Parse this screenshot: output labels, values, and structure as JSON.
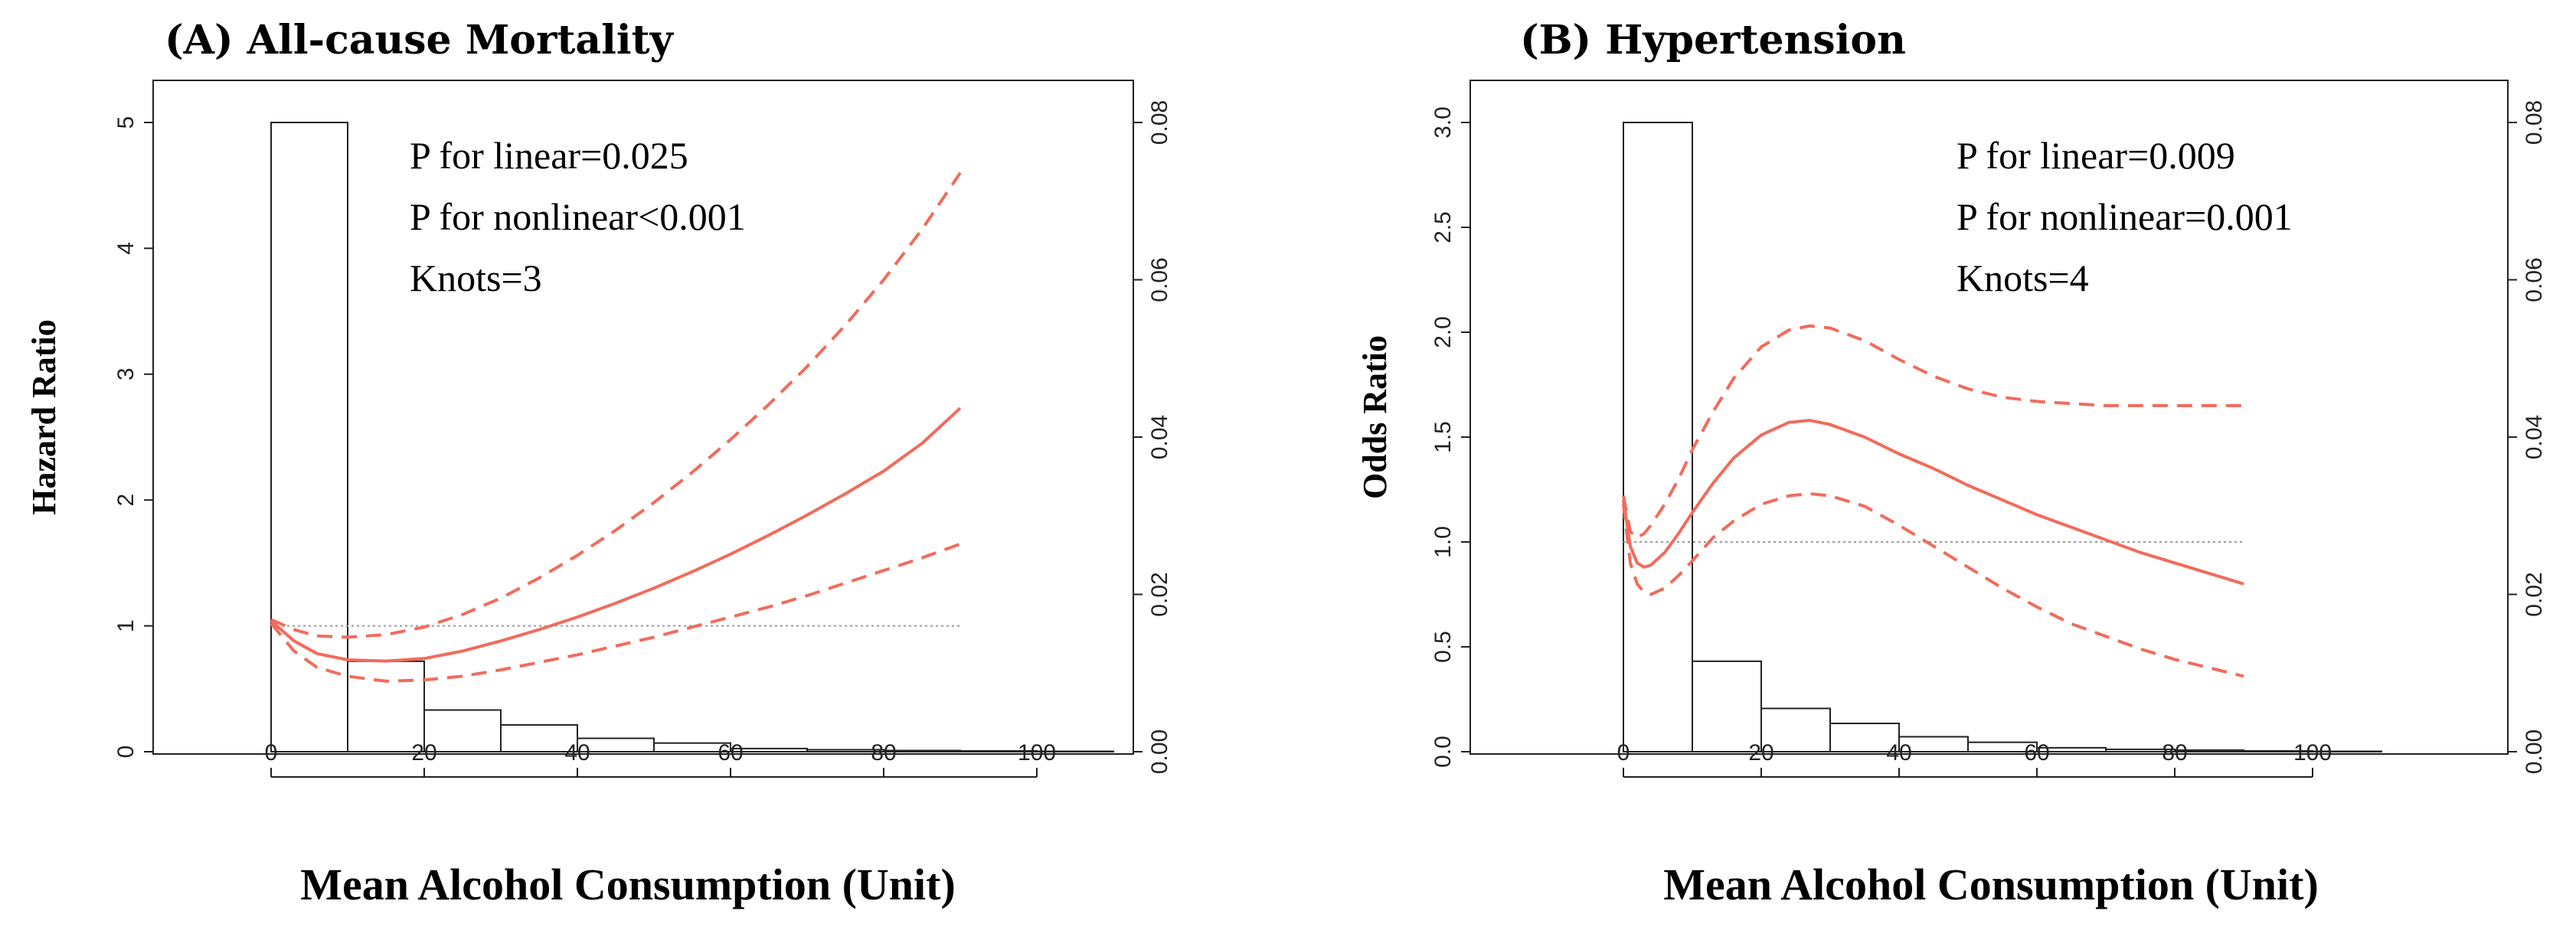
{
  "colors": {
    "curve": "#F26B5B",
    "reference": "#999999",
    "axis": "#222222"
  },
  "chart_data": [
    {
      "type": "line",
      "title": "(A) All-cause Mortality",
      "xlabel": "Mean Alcohol Consumption  (Unit)",
      "ylabel": "Hazard  Ratio",
      "y2label": "",
      "xlim": [
        0,
        110
      ],
      "xticks": [
        0,
        20,
        40,
        60,
        80,
        100
      ],
      "ylim": [
        0,
        5
      ],
      "yticks": [
        0,
        1,
        2,
        3,
        4,
        5
      ],
      "ytick_labels": [
        "0",
        "1",
        "2",
        "3",
        "4",
        "5"
      ],
      "y2lim": [
        0,
        0.08
      ],
      "y2ticks": [
        0,
        0.02,
        0.04,
        0.06,
        0.08
      ],
      "y2tick_labels": [
        "0.00",
        "0.02",
        "0.04",
        "0.06",
        "0.08"
      ],
      "reference_y": 1,
      "reference_x_range": [
        0,
        90
      ],
      "annotations": [
        "P for linear=0.025",
        "P for nonlinear<0.001",
        "Knots=3"
      ],
      "histogram": {
        "bin_edges": [
          0,
          10,
          20,
          30,
          40,
          50,
          60,
          70,
          80,
          90,
          100,
          110
        ],
        "densities": [
          0.08,
          0.0115,
          0.0053,
          0.0034,
          0.0017,
          0.0011,
          0.0004,
          0.00025,
          0.00015,
          0.0001,
          5e-05
        ]
      },
      "series": [
        {
          "name": "Estimate",
          "style": "solid",
          "x": [
            0,
            3,
            6,
            10,
            15,
            20,
            25,
            30,
            35,
            40,
            45,
            50,
            55,
            60,
            65,
            70,
            75,
            80,
            85,
            90
          ],
          "y": [
            1.04,
            0.88,
            0.78,
            0.73,
            0.72,
            0.74,
            0.8,
            0.88,
            0.97,
            1.07,
            1.18,
            1.3,
            1.43,
            1.57,
            1.72,
            1.88,
            2.05,
            2.23,
            2.45,
            2.73
          ]
        },
        {
          "name": "Upper 95% CI",
          "style": "dashed",
          "x": [
            0,
            3,
            6,
            10,
            15,
            20,
            25,
            30,
            35,
            40,
            45,
            50,
            55,
            60,
            65,
            70,
            75,
            80,
            85,
            90
          ],
          "y": [
            1.05,
            0.97,
            0.92,
            0.91,
            0.93,
            0.99,
            1.09,
            1.22,
            1.38,
            1.56,
            1.76,
            1.98,
            2.22,
            2.48,
            2.76,
            3.06,
            3.39,
            3.75,
            4.15,
            4.6
          ]
        },
        {
          "name": "Lower 95% CI",
          "style": "dashed",
          "x": [
            0,
            3,
            6,
            10,
            15,
            20,
            25,
            30,
            35,
            40,
            45,
            50,
            55,
            60,
            65,
            70,
            75,
            80,
            85,
            90
          ],
          "y": [
            1.02,
            0.8,
            0.67,
            0.6,
            0.56,
            0.57,
            0.6,
            0.65,
            0.71,
            0.77,
            0.84,
            0.91,
            0.99,
            1.07,
            1.15,
            1.24,
            1.34,
            1.44,
            1.54,
            1.65
          ]
        }
      ]
    },
    {
      "type": "line",
      "title": "(B) Hypertension",
      "xlabel": "Mean Alcohol Consumption  (Unit)",
      "ylabel": "Odds  Ratio",
      "y2label": "",
      "xlim": [
        0,
        110
      ],
      "xticks": [
        0,
        20,
        40,
        60,
        80,
        100
      ],
      "ylim": [
        0,
        3
      ],
      "yticks": [
        0,
        0.5,
        1,
        1.5,
        2,
        2.5,
        3
      ],
      "ytick_labels": [
        "0.0",
        "0.5",
        "1.0",
        "1.5",
        "2.0",
        "2.5",
        "3.0"
      ],
      "y2lim": [
        0,
        0.08
      ],
      "y2ticks": [
        0,
        0.02,
        0.04,
        0.06,
        0.08
      ],
      "y2tick_labels": [
        "0.00",
        "0.02",
        "0.04",
        "0.06",
        "0.08"
      ],
      "reference_y": 1,
      "reference_x_range": [
        0,
        90
      ],
      "annotations": [
        "P for linear=0.009",
        "P for nonlinear=0.001",
        "Knots=4"
      ],
      "histogram": {
        "bin_edges": [
          0,
          10,
          20,
          30,
          40,
          50,
          60,
          70,
          80,
          90,
          100,
          110
        ],
        "densities": [
          0.08,
          0.0115,
          0.0055,
          0.0036,
          0.0019,
          0.0012,
          0.0005,
          0.0003,
          0.0002,
          0.0001,
          5e-05
        ]
      },
      "series": [
        {
          "name": "Estimate",
          "style": "solid",
          "x": [
            0,
            1,
            2,
            3,
            4,
            6,
            8,
            10,
            13,
            16,
            20,
            24,
            27,
            30,
            35,
            40,
            45,
            50,
            55,
            60,
            65,
            70,
            75,
            80,
            85,
            90
          ],
          "y": [
            1.2,
            0.98,
            0.9,
            0.88,
            0.89,
            0.95,
            1.04,
            1.14,
            1.28,
            1.4,
            1.51,
            1.57,
            1.58,
            1.56,
            1.5,
            1.42,
            1.35,
            1.27,
            1.2,
            1.13,
            1.07,
            1.01,
            0.95,
            0.9,
            0.85,
            0.8
          ]
        },
        {
          "name": "Upper 95% CI",
          "style": "dashed",
          "x": [
            0,
            1,
            2,
            3,
            4,
            6,
            8,
            10,
            13,
            16,
            20,
            24,
            27,
            30,
            35,
            40,
            45,
            50,
            55,
            60,
            65,
            70,
            75,
            80,
            85,
            90
          ],
          "y": [
            1.22,
            1.05,
            1.02,
            1.04,
            1.08,
            1.18,
            1.3,
            1.44,
            1.62,
            1.78,
            1.93,
            2.01,
            2.03,
            2.02,
            1.96,
            1.87,
            1.79,
            1.73,
            1.69,
            1.67,
            1.66,
            1.65,
            1.65,
            1.65,
            1.65,
            1.65
          ]
        },
        {
          "name": "Lower 95% CI",
          "style": "dashed",
          "x": [
            0,
            1,
            2,
            3,
            4,
            6,
            8,
            10,
            13,
            16,
            20,
            24,
            27,
            30,
            35,
            40,
            45,
            50,
            55,
            60,
            65,
            70,
            75,
            80,
            85,
            90
          ],
          "y": [
            1.18,
            0.9,
            0.8,
            0.76,
            0.75,
            0.78,
            0.84,
            0.91,
            1.02,
            1.1,
            1.18,
            1.22,
            1.23,
            1.22,
            1.17,
            1.08,
            0.98,
            0.88,
            0.78,
            0.69,
            0.61,
            0.55,
            0.49,
            0.44,
            0.4,
            0.36
          ]
        }
      ]
    }
  ]
}
